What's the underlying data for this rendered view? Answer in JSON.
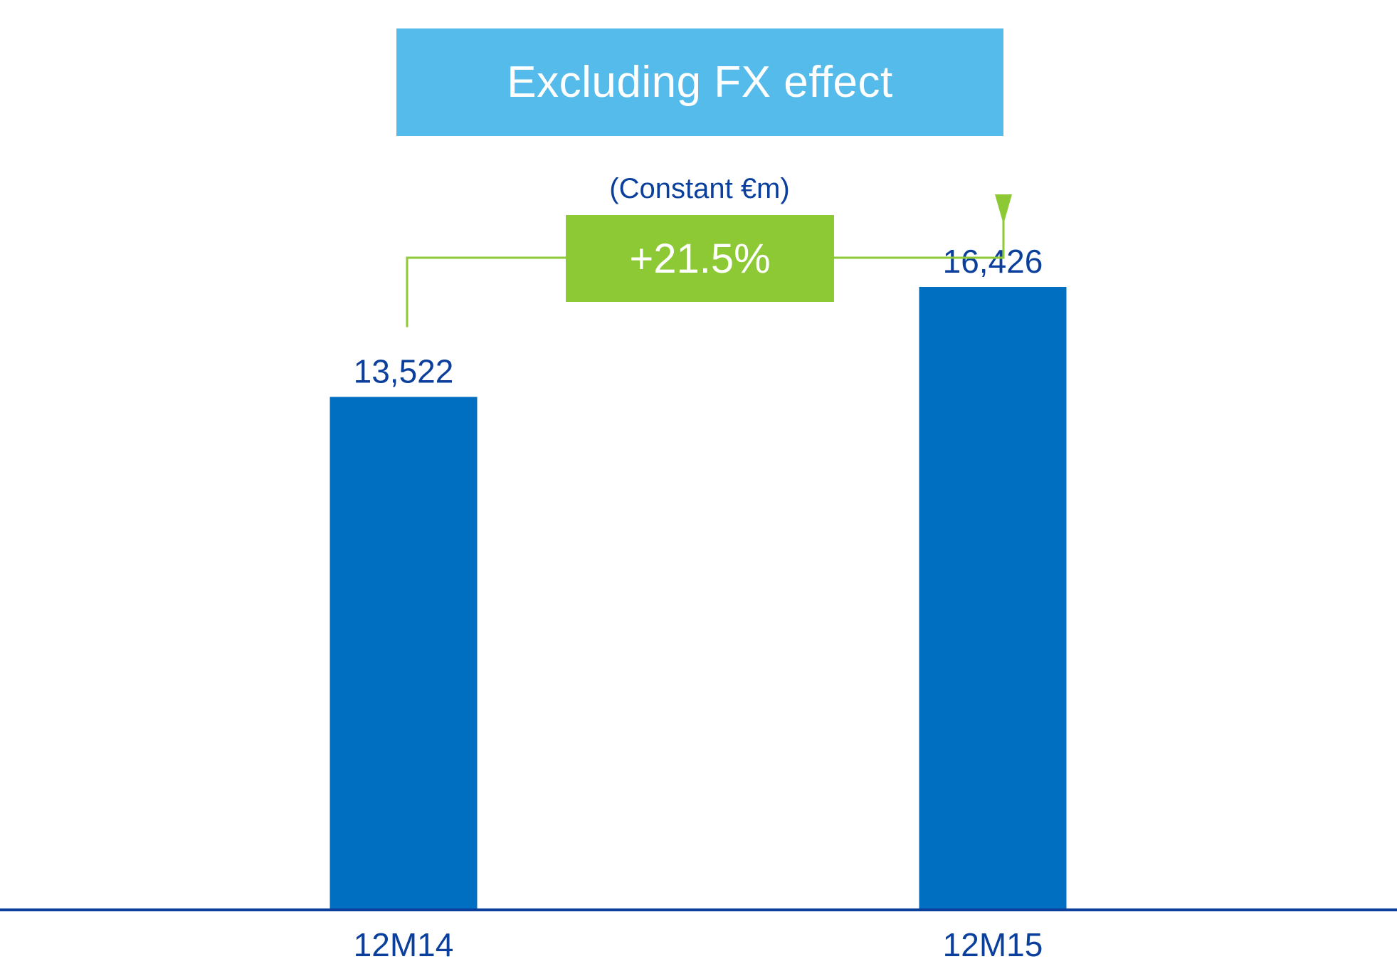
{
  "header": {
    "title": "Excluding FX effect"
  },
  "unit_label": "(Constant €m)",
  "growth": {
    "label": "+21.5%"
  },
  "colors": {
    "header_bg": "#55BBEB",
    "growth_bg": "#8CC934",
    "bar": "#006EC1",
    "text": "#0B3F9C",
    "axis": "#0B3F9C"
  },
  "chart_data": {
    "type": "bar",
    "categories": [
      "12M14",
      "12M15"
    ],
    "values": [
      13522,
      16426
    ],
    "data_labels": [
      "13,522",
      "16,426"
    ],
    "ylim": [
      0,
      24000
    ],
    "grid": false,
    "legend": "none",
    "annotation": {
      "from": "12M14",
      "to": "12M15",
      "label": "+21.5%"
    }
  }
}
